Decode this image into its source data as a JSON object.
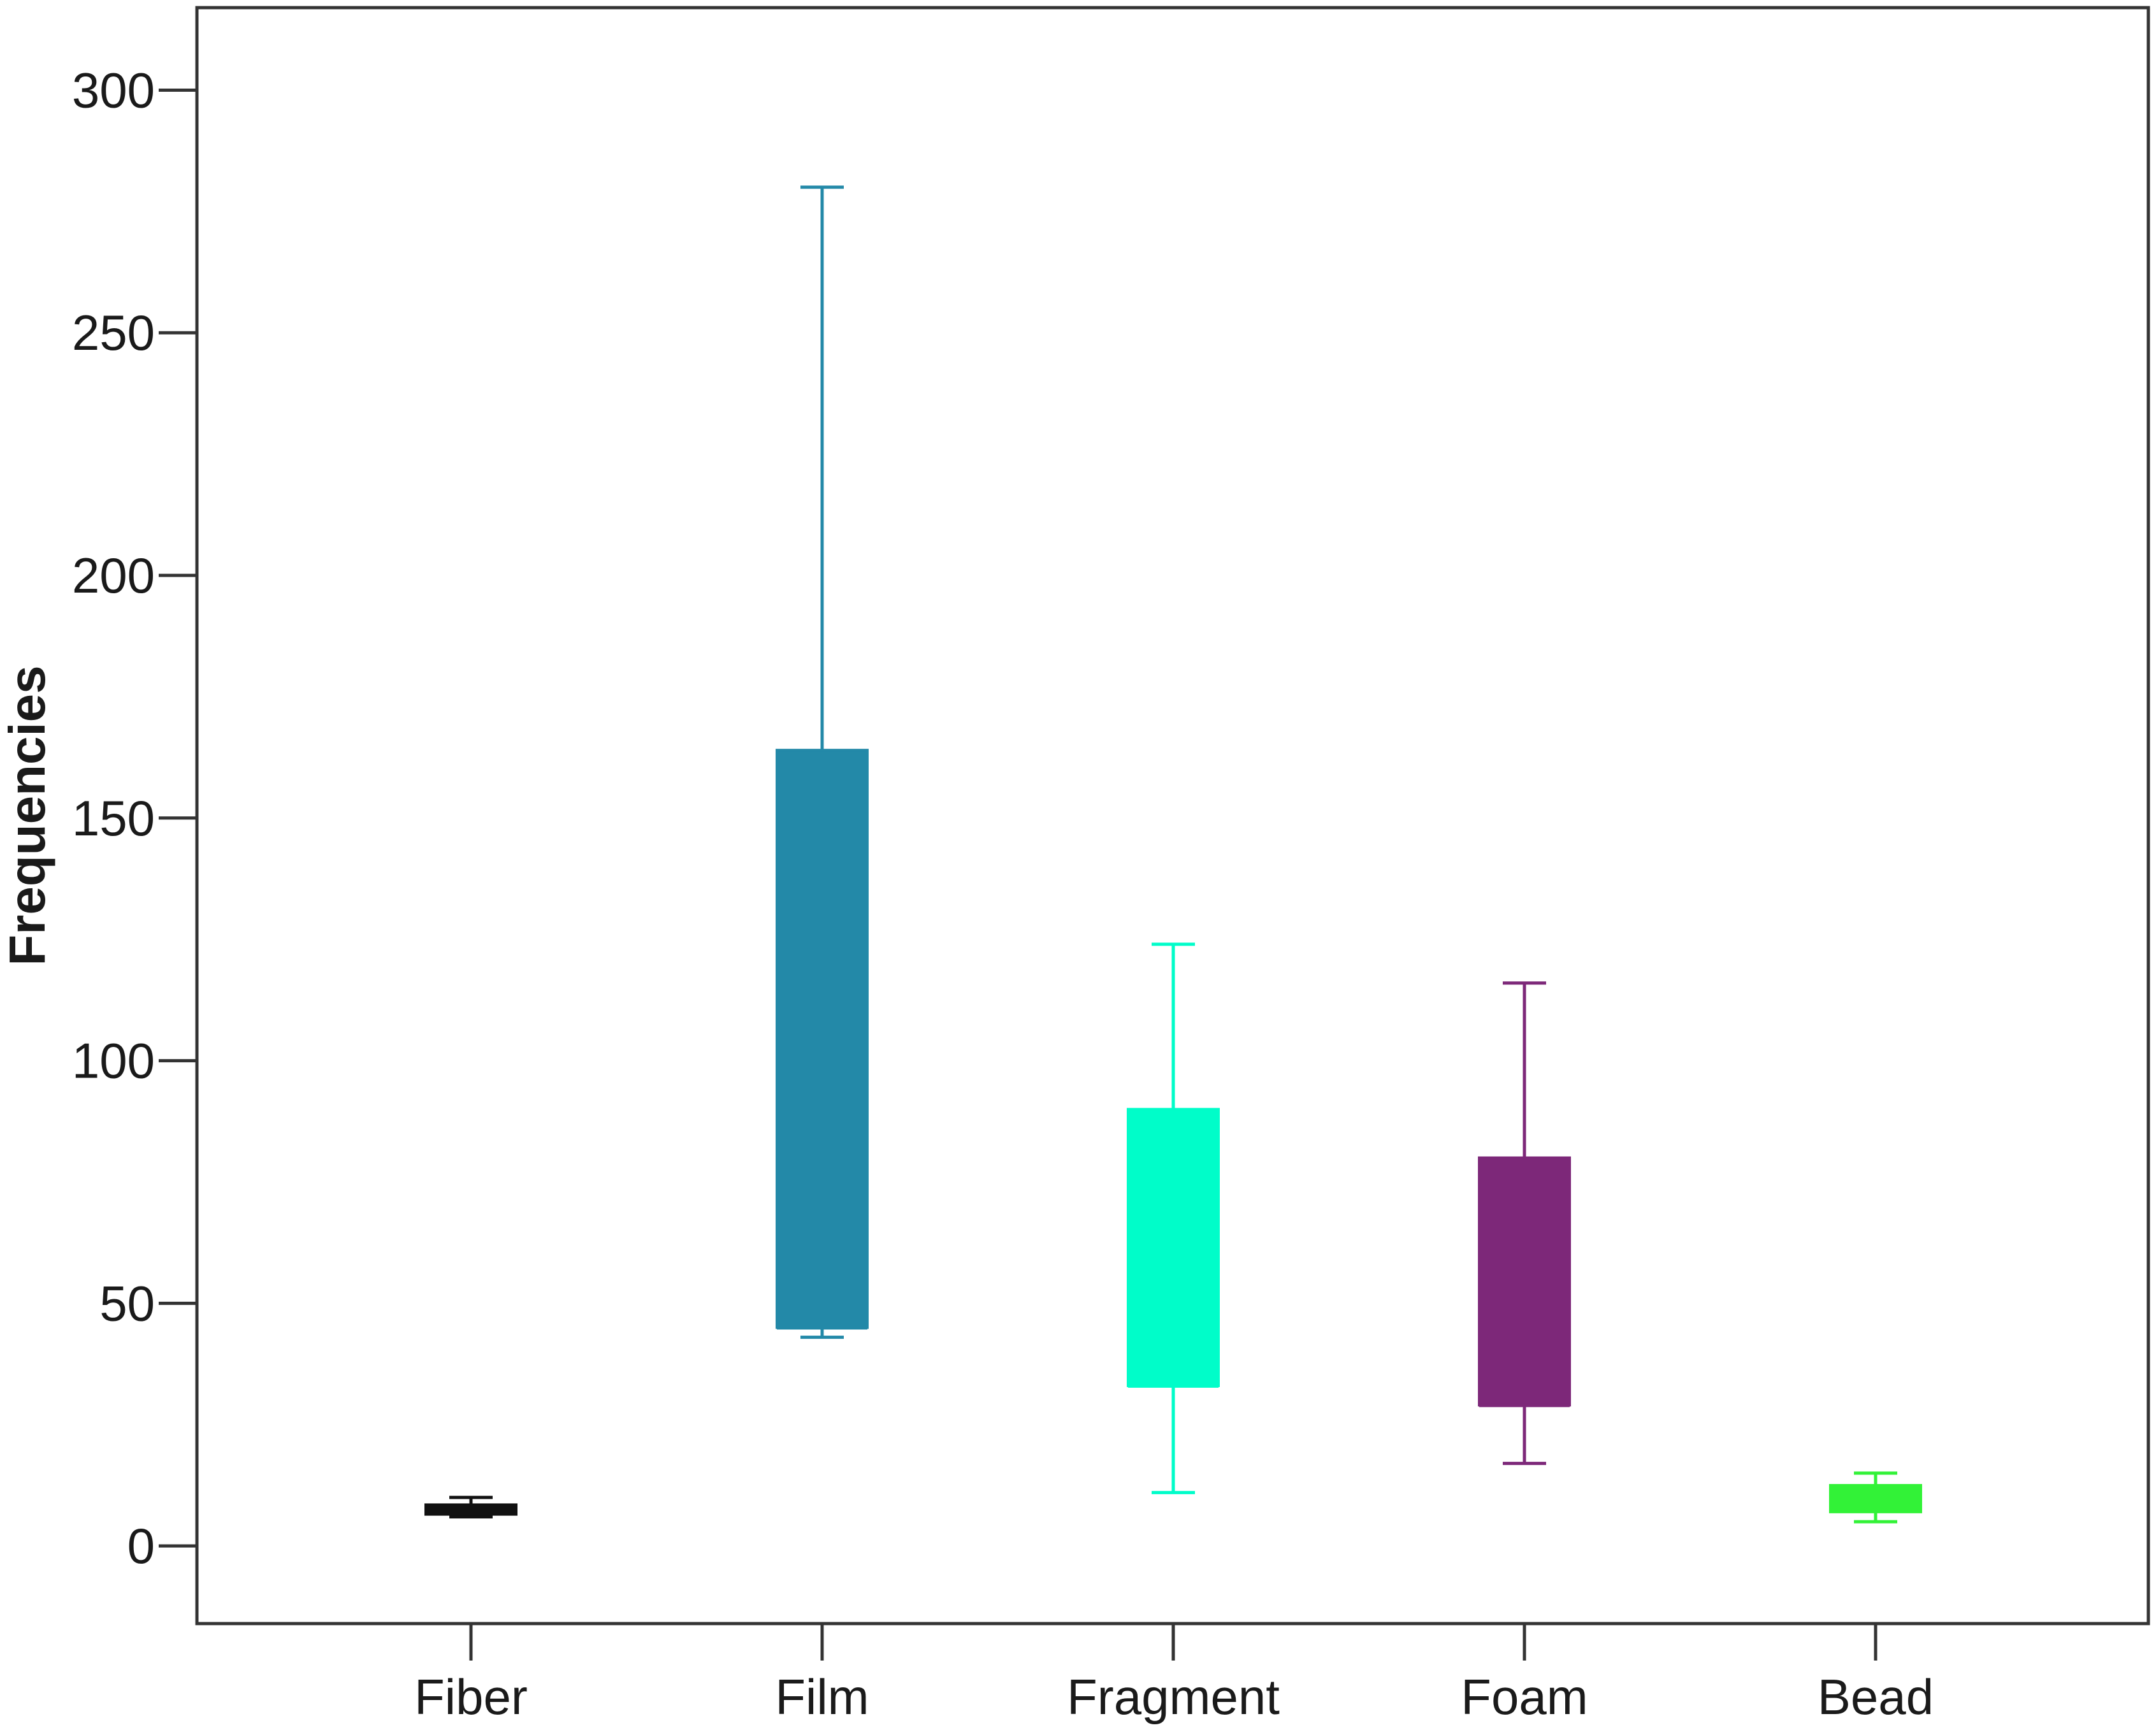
{
  "chart_data": {
    "type": "box",
    "title": "",
    "xlabel": "",
    "ylabel": "Frequencies",
    "ylim": [
      -16,
      317
    ],
    "yticks": [
      0,
      50,
      100,
      150,
      200,
      250,
      300
    ],
    "categories": [
      "Fiber",
      "Film",
      "Fragment",
      "Foam",
      "Bead"
    ],
    "boxes": [
      {
        "category": "Fiber",
        "whisker_low": 6,
        "q1": 6.5,
        "median": 7.5,
        "q3": 8.5,
        "whisker_high": 10,
        "color": "#111111"
      },
      {
        "category": "Film",
        "whisker_low": 43,
        "q1": 45,
        "median": 45,
        "q3": 164,
        "whisker_high": 280,
        "color": "#2389a8"
      },
      {
        "category": "Fragment",
        "whisker_low": 11,
        "q1": 33,
        "median": 33,
        "q3": 90,
        "whisker_high": 124,
        "color": "#00fdc9"
      },
      {
        "category": "Foam",
        "whisker_low": 17,
        "q1": 29,
        "median": 29,
        "q3": 80,
        "whisker_high": 116,
        "color": "#7d2879"
      },
      {
        "category": "Bead",
        "whisker_low": 5,
        "q1": 7,
        "median": 10,
        "q3": 12.5,
        "whisker_high": 15,
        "color": "#32f237"
      }
    ],
    "grid": false,
    "legend": "none"
  }
}
